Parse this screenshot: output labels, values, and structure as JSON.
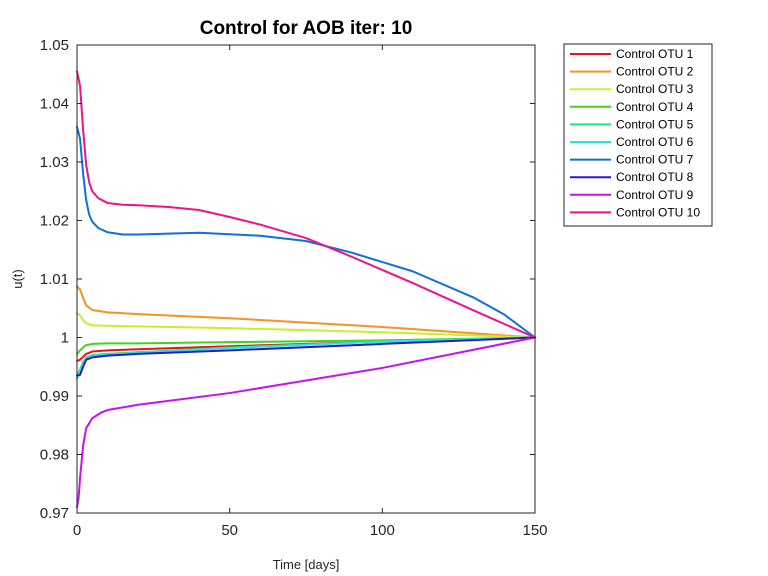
{
  "chart_data": {
    "type": "line",
    "title": "Control for AOB iter: 10",
    "xlabel": "Time [days]",
    "ylabel": "u(t)",
    "xlim": [
      0,
      150
    ],
    "ylim": [
      0.97,
      1.05
    ],
    "xticks": [
      0,
      50,
      100,
      150
    ],
    "xtick_labels": [
      "0",
      "50",
      "100",
      "150"
    ],
    "yticks": [
      0.97,
      0.98,
      0.99,
      1.0,
      1.01,
      1.02,
      1.03,
      1.04,
      1.05
    ],
    "ytick_labels": [
      "0.97",
      "0.98",
      "0.99",
      "1",
      "1.01",
      "1.02",
      "1.03",
      "1.04",
      "1.05"
    ],
    "grid": false,
    "legend_position": "outside-right",
    "series": [
      {
        "name": "Control OTU 1",
        "color": "#e8121f",
        "x": [
          0,
          1,
          2,
          3,
          5,
          10,
          20,
          50,
          100,
          150
        ],
        "y": [
          0.996,
          0.9962,
          0.9967,
          0.9972,
          0.9976,
          0.9978,
          0.998,
          0.9985,
          0.9993,
          1.0
        ]
      },
      {
        "name": "Control OTU 2",
        "color": "#f7931e",
        "x": [
          0,
          1,
          2,
          3,
          5,
          10,
          20,
          50,
          100,
          150
        ],
        "y": [
          1.0087,
          1.0082,
          1.0068,
          1.0055,
          1.0047,
          1.0043,
          1.004,
          1.0033,
          1.0018,
          1.0
        ]
      },
      {
        "name": "Control OTU 3",
        "color": "#c6f02e",
        "x": [
          0,
          1,
          2,
          3,
          5,
          10,
          20,
          50,
          100,
          150
        ],
        "y": [
          1.0042,
          1.0038,
          1.003,
          1.0024,
          1.0021,
          1.002,
          1.0019,
          1.0016,
          1.0009,
          1.0
        ]
      },
      {
        "name": "Control OTU 4",
        "color": "#3fd41f",
        "x": [
          0,
          1,
          2,
          3,
          5,
          10,
          20,
          50,
          100,
          150
        ],
        "y": [
          0.9972,
          0.9978,
          0.9983,
          0.9987,
          0.9989,
          0.999,
          0.999,
          0.9992,
          0.9995,
          1.0
        ]
      },
      {
        "name": "Control OTU 5",
        "color": "#1de870",
        "x": [
          0,
          1,
          2,
          3,
          5,
          10,
          20,
          50,
          100,
          150
        ],
        "y": [
          0.9935,
          0.9945,
          0.9958,
          0.9966,
          0.997,
          0.9972,
          0.9975,
          0.9983,
          0.9993,
          1.0
        ]
      },
      {
        "name": "Control OTU 6",
        "color": "#24e8e0",
        "x": [
          0,
          1,
          2,
          3,
          5,
          10,
          20,
          50,
          100,
          150
        ],
        "y": [
          0.993,
          0.9942,
          0.9955,
          0.9964,
          0.9968,
          0.997,
          0.9974,
          0.9982,
          0.9993,
          1.0
        ]
      },
      {
        "name": "Control OTU 7",
        "color": "#0f6fe0",
        "x": [
          0,
          1,
          2,
          3,
          4,
          5,
          7,
          10,
          15,
          20,
          40,
          60,
          75,
          90,
          110,
          130,
          140,
          150
        ],
        "y": [
          1.036,
          1.034,
          1.028,
          1.0235,
          1.021,
          1.0198,
          1.0187,
          1.018,
          1.0176,
          1.0176,
          1.0179,
          1.0174,
          1.0165,
          1.0145,
          1.0113,
          1.0068,
          1.0039,
          1.0
        ]
      },
      {
        "name": "Control OTU 8",
        "color": "#2b17c9",
        "x": [
          0,
          1,
          2,
          3,
          5,
          10,
          20,
          50,
          100,
          150
        ],
        "y": [
          0.9935,
          0.9936,
          0.995,
          0.9962,
          0.9966,
          0.9969,
          0.9972,
          0.9978,
          0.9989,
          1.0
        ]
      },
      {
        "name": "Control OTU 9",
        "color": "#c313f0",
        "x": [
          0,
          0.5,
          1,
          2,
          3,
          5,
          8,
          10,
          20,
          50,
          100,
          150
        ],
        "y": [
          0.971,
          0.9725,
          0.976,
          0.9815,
          0.9845,
          0.9862,
          0.9872,
          0.9876,
          0.9885,
          0.9905,
          0.9948,
          1.0
        ]
      },
      {
        "name": "Control OTU 10",
        "color": "#ef1289",
        "x": [
          0,
          1,
          2,
          3,
          4,
          5,
          7,
          10,
          15,
          20,
          30,
          40,
          50,
          60,
          75,
          90,
          110,
          130,
          150
        ],
        "y": [
          1.0455,
          1.043,
          1.0355,
          1.0295,
          1.0265,
          1.025,
          1.0238,
          1.023,
          1.0227,
          1.0226,
          1.0223,
          1.0218,
          1.0206,
          1.0193,
          1.017,
          1.0138,
          1.0093,
          1.0046,
          1.0
        ]
      }
    ]
  }
}
